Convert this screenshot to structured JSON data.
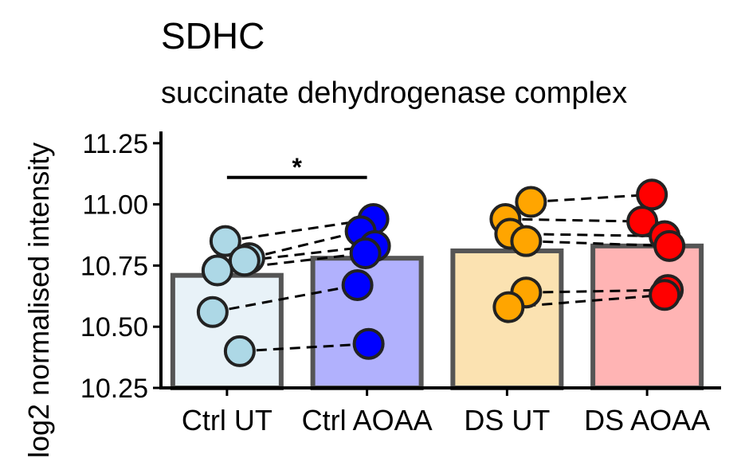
{
  "chart_data": {
    "type": "bar",
    "title": "SDHC",
    "subtitle": "succinate dehydrogenase complex",
    "ylabel": "log2 normalised intensity",
    "xlabel": "",
    "ylim": [
      10.25,
      11.3
    ],
    "yticks": [
      10.25,
      10.5,
      10.75,
      11.0,
      11.25
    ],
    "ytick_labels": [
      "10.25",
      "10.50",
      "10.75",
      "11.00",
      "11.25"
    ],
    "categories": [
      "Ctrl UT",
      "Ctrl AOAA",
      "DS UT",
      "DS AOAA"
    ],
    "values": [
      10.71,
      10.78,
      10.81,
      10.83
    ],
    "bar_fills": [
      "#e8f2f8",
      "#b1b1fd",
      "#fbe2b1",
      "#ffb4b4"
    ],
    "point_colors": [
      "#add8e6",
      "#0000ff",
      "#ffa500",
      "#ff0000"
    ],
    "bar_edge_color": "#555555",
    "points": [
      [
        10.85,
        10.78,
        10.77,
        10.73,
        10.56,
        10.4
      ],
      [
        10.94,
        10.89,
        10.83,
        10.8,
        10.67,
        10.43
      ],
      [
        11.01,
        10.94,
        10.88,
        10.85,
        10.64,
        10.58
      ],
      [
        11.04,
        10.93,
        10.87,
        10.83,
        10.65,
        10.63
      ]
    ],
    "pairs": [
      {
        "from": [
          0,
          10.85
        ],
        "to": [
          1,
          10.94
        ]
      },
      {
        "from": [
          0,
          10.78
        ],
        "to": [
          1,
          10.89
        ]
      },
      {
        "from": [
          0,
          10.77
        ],
        "to": [
          1,
          10.83
        ]
      },
      {
        "from": [
          0,
          10.73
        ],
        "to": [
          1,
          10.8
        ]
      },
      {
        "from": [
          0,
          10.56
        ],
        "to": [
          1,
          10.67
        ]
      },
      {
        "from": [
          0,
          10.4
        ],
        "to": [
          1,
          10.43
        ]
      },
      {
        "from": [
          2,
          11.01
        ],
        "to": [
          3,
          11.04
        ]
      },
      {
        "from": [
          2,
          10.94
        ],
        "to": [
          3,
          10.93
        ]
      },
      {
        "from": [
          2,
          10.88
        ],
        "to": [
          3,
          10.87
        ]
      },
      {
        "from": [
          2,
          10.85
        ],
        "to": [
          3,
          10.83
        ]
      },
      {
        "from": [
          2,
          10.64
        ],
        "to": [
          3,
          10.65
        ]
      },
      {
        "from": [
          2,
          10.58
        ],
        "to": [
          3,
          10.63
        ]
      }
    ],
    "significance": [
      {
        "from": 0,
        "to": 1,
        "y": 11.11,
        "label": "*"
      }
    ],
    "grid": false,
    "legend": "none"
  }
}
